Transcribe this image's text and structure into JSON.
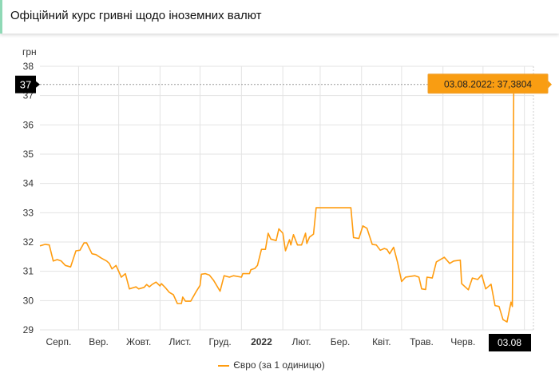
{
  "header": {
    "title": "Офіційний курс гривні щодо іноземних валют"
  },
  "chart_data": {
    "type": "line",
    "title": "Офіційний курс гривні щодо іноземних валют",
    "ylabel": "грн",
    "xlabel": "",
    "ylim": [
      29,
      38
    ],
    "y_ticks": [
      "29",
      "30",
      "31",
      "32",
      "33",
      "34",
      "35",
      "36",
      "37",
      "38"
    ],
    "x_range_days": [
      0,
      365
    ],
    "x_ticks": [
      {
        "label": "Серп.",
        "day": 14,
        "bold": false
      },
      {
        "label": "Вер.",
        "day": 44,
        "bold": false
      },
      {
        "label": "Жовт.",
        "day": 74,
        "bold": false
      },
      {
        "label": "Лист.",
        "day": 105,
        "bold": false
      },
      {
        "label": "Груд.",
        "day": 135,
        "bold": false
      },
      {
        "label": "2022",
        "day": 166,
        "bold": true
      },
      {
        "label": "Лют.",
        "day": 196,
        "bold": false
      },
      {
        "label": "Бер.",
        "day": 225,
        "bold": false
      },
      {
        "label": "Квіт.",
        "day": 256,
        "bold": false
      },
      {
        "label": "Трав.",
        "day": 286,
        "bold": false
      },
      {
        "label": "Черв.",
        "day": 317,
        "bold": false
      }
    ],
    "month_starts": [
      29,
      59,
      90,
      120,
      151,
      182,
      210,
      241,
      271,
      302,
      332,
      363
    ],
    "grid": true,
    "legend_position": "bottom",
    "series": [
      {
        "name": "Євро (за 1 одиницю)",
        "color": "#ff9c0f",
        "points": [
          [
            0,
            31.87
          ],
          [
            4,
            31.92
          ],
          [
            7,
            31.9
          ],
          [
            10,
            31.35
          ],
          [
            13,
            31.4
          ],
          [
            16,
            31.35
          ],
          [
            19,
            31.2
          ],
          [
            23,
            31.15
          ],
          [
            27,
            31.7
          ],
          [
            30,
            31.72
          ],
          [
            33,
            31.97
          ],
          [
            35,
            31.97
          ],
          [
            39,
            31.6
          ],
          [
            42,
            31.57
          ],
          [
            46,
            31.45
          ],
          [
            50,
            31.35
          ],
          [
            52,
            31.27
          ],
          [
            54,
            31.08
          ],
          [
            57,
            31.2
          ],
          [
            61,
            30.8
          ],
          [
            64,
            30.92
          ],
          [
            67,
            30.4
          ],
          [
            72,
            30.47
          ],
          [
            74,
            30.4
          ],
          [
            78,
            30.45
          ],
          [
            80,
            30.55
          ],
          [
            82,
            30.47
          ],
          [
            84,
            30.55
          ],
          [
            87,
            30.63
          ],
          [
            90,
            30.5
          ],
          [
            91,
            30.58
          ],
          [
            94,
            30.44
          ],
          [
            97,
            30.28
          ],
          [
            100,
            30.2
          ],
          [
            103,
            29.9
          ],
          [
            106,
            29.9
          ],
          [
            107,
            30.12
          ],
          [
            109,
            29.98
          ],
          [
            113,
            29.98
          ],
          [
            117,
            30.3
          ],
          [
            120,
            30.52
          ],
          [
            121,
            30.9
          ],
          [
            124,
            30.92
          ],
          [
            127,
            30.87
          ],
          [
            130,
            30.7
          ],
          [
            135,
            30.32
          ],
          [
            138,
            30.85
          ],
          [
            142,
            30.8
          ],
          [
            145,
            30.85
          ],
          [
            151,
            30.8
          ],
          [
            152,
            30.92
          ],
          [
            157,
            30.92
          ],
          [
            158,
            31.05
          ],
          [
            161,
            31.1
          ],
          [
            163,
            31.2
          ],
          [
            166,
            31.75
          ],
          [
            169,
            31.75
          ],
          [
            171,
            32.3
          ],
          [
            173,
            32.1
          ],
          [
            177,
            32.05
          ],
          [
            179,
            32.45
          ],
          [
            182,
            32.3
          ],
          [
            184,
            31.7
          ],
          [
            187,
            32.08
          ],
          [
            188,
            31.9
          ],
          [
            190,
            32.25
          ],
          [
            193,
            31.9
          ],
          [
            196,
            31.9
          ],
          [
            199,
            32.3
          ],
          [
            200,
            31.95
          ],
          [
            202,
            32.17
          ],
          [
            205,
            32.27
          ],
          [
            207,
            33.17
          ],
          [
            233,
            33.17
          ],
          [
            235,
            32.15
          ],
          [
            239,
            32.12
          ],
          [
            242,
            32.55
          ],
          [
            245,
            32.47
          ],
          [
            249,
            31.92
          ],
          [
            252,
            31.9
          ],
          [
            255,
            31.72
          ],
          [
            258,
            31.78
          ],
          [
            260,
            31.75
          ],
          [
            262,
            31.6
          ],
          [
            265,
            31.82
          ],
          [
            268,
            31.3
          ],
          [
            271,
            30.65
          ],
          [
            274,
            30.8
          ],
          [
            281,
            30.85
          ],
          [
            284,
            30.8
          ],
          [
            286,
            30.4
          ],
          [
            289,
            30.38
          ],
          [
            290,
            30.8
          ],
          [
            294,
            30.77
          ],
          [
            297,
            31.32
          ],
          [
            303,
            31.48
          ],
          [
            307,
            31.27
          ],
          [
            310,
            31.35
          ],
          [
            315,
            31.38
          ],
          [
            316,
            30.58
          ],
          [
            321,
            30.37
          ],
          [
            324,
            30.77
          ],
          [
            328,
            30.72
          ],
          [
            331,
            30.88
          ],
          [
            334,
            30.4
          ],
          [
            338,
            30.56
          ],
          [
            341,
            29.83
          ],
          [
            344,
            29.8
          ],
          [
            347,
            29.35
          ],
          [
            350,
            29.27
          ],
          [
            353,
            29.95
          ],
          [
            354,
            29.8
          ],
          [
            355,
            37.2
          ],
          [
            358,
            37.3
          ],
          [
            362,
            37.15
          ],
          [
            365,
            37.3804
          ]
        ]
      }
    ],
    "annotations": {
      "tooltip": "03.08.2022: 37,3804",
      "crosshair_y_label": "37",
      "crosshair_x_label": "03.08"
    }
  }
}
